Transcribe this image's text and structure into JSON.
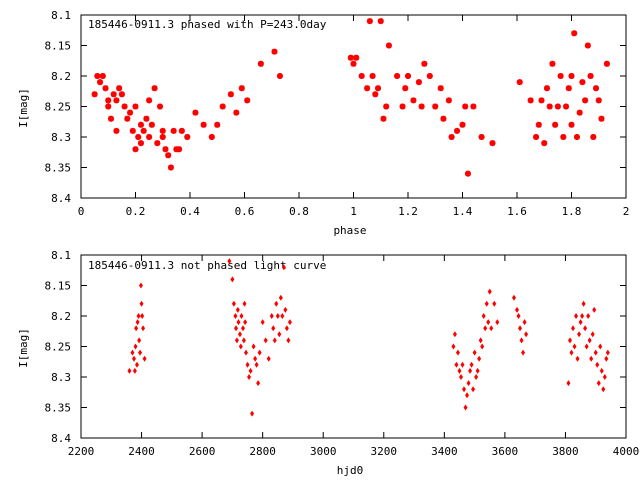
{
  "colors": {
    "point": "#ff0000",
    "axis": "#000000",
    "background": "#ffffff"
  },
  "chart_data": [
    {
      "type": "scatter",
      "title": "185446-0911.3 phased with P=243.0day",
      "xlabel": "phase",
      "ylabel": "I[mag]",
      "xlim": [
        0,
        2
      ],
      "ylim": [
        8.4,
        8.1
      ],
      "y_inverted": true,
      "marker": "star",
      "xticks": [
        "0",
        "0.2",
        "0.4",
        "0.6",
        "0.8",
        "1",
        "1.2",
        "1.4",
        "1.6",
        "1.8",
        "2"
      ],
      "yticks": [
        "8.1",
        "8.15",
        "8.2",
        "8.25",
        "8.3",
        "8.35",
        "8.4"
      ],
      "series": [
        {
          "x": [
            0.05,
            0.06,
            0.07,
            0.08,
            0.09,
            0.1,
            0.1,
            0.11,
            0.12,
            0.13,
            0.13,
            0.14,
            0.15,
            0.16,
            0.17,
            0.18,
            0.19,
            0.2,
            0.2,
            0.21,
            0.22,
            0.22,
            0.23,
            0.24,
            0.25,
            0.25,
            0.26,
            0.27,
            0.28,
            0.29,
            0.3,
            0.3,
            0.31,
            0.32,
            0.33,
            0.34,
            0.35,
            0.36,
            0.37,
            0.39,
            0.42,
            0.45,
            0.48,
            0.5,
            0.52,
            0.55,
            0.57,
            0.59,
            0.61,
            0.66,
            0.71,
            0.73,
            0.99,
            1.0,
            1.01,
            1.03,
            1.05,
            1.06,
            1.07,
            1.08,
            1.09,
            1.1,
            1.11,
            1.12,
            1.13,
            1.16,
            1.18,
            1.19,
            1.2,
            1.22,
            1.24,
            1.25,
            1.26,
            1.28,
            1.3,
            1.32,
            1.33,
            1.35,
            1.36,
            1.38,
            1.4,
            1.41,
            1.42,
            1.44,
            1.47,
            1.51,
            1.61,
            1.65,
            1.67,
            1.68,
            1.69,
            1.7,
            1.71,
            1.72,
            1.73,
            1.74,
            1.75,
            1.76,
            1.77,
            1.78,
            1.79,
            1.8,
            1.8,
            1.81,
            1.82,
            1.83,
            1.84,
            1.85,
            1.86,
            1.87,
            1.88,
            1.89,
            1.9,
            1.91,
            1.93
          ],
          "y": [
            8.23,
            8.2,
            8.21,
            8.2,
            8.22,
            8.24,
            8.25,
            8.27,
            8.23,
            8.24,
            8.29,
            8.22,
            8.23,
            8.25,
            8.27,
            8.26,
            8.29,
            8.25,
            8.32,
            8.3,
            8.28,
            8.31,
            8.29,
            8.27,
            8.24,
            8.3,
            8.28,
            8.22,
            8.31,
            8.25,
            8.3,
            8.29,
            8.32,
            8.33,
            8.35,
            8.29,
            8.32,
            8.32,
            8.29,
            8.3,
            8.26,
            8.28,
            8.3,
            8.28,
            8.25,
            8.23,
            8.26,
            8.22,
            8.24,
            8.18,
            8.16,
            8.2,
            8.17,
            8.18,
            8.17,
            8.2,
            8.22,
            8.11,
            8.2,
            8.23,
            8.22,
            8.11,
            8.27,
            8.25,
            8.15,
            8.2,
            8.25,
            8.22,
            8.2,
            8.24,
            8.21,
            8.25,
            8.18,
            8.2,
            8.25,
            8.22,
            8.27,
            8.24,
            8.3,
            8.29,
            8.28,
            8.25,
            8.36,
            8.25,
            8.3,
            8.31,
            8.21,
            8.24,
            8.3,
            8.28,
            8.24,
            8.31,
            8.22,
            8.25,
            8.18,
            8.28,
            8.25,
            8.2,
            8.3,
            8.25,
            8.22,
            8.28,
            8.2,
            8.13,
            8.3,
            8.26,
            8.21,
            8.24,
            8.15,
            8.2,
            8.3,
            8.22,
            8.24,
            8.27,
            8.18
          ]
        }
      ]
    },
    {
      "type": "scatter",
      "title": "185446-0911.3 not phased light curve",
      "xlabel": "hjd0",
      "ylabel": "I[mag]",
      "xlim": [
        2200,
        4000
      ],
      "ylim": [
        8.4,
        8.1
      ],
      "y_inverted": true,
      "marker": "diamond",
      "xticks": [
        "2200",
        "2400",
        "2600",
        "2800",
        "3000",
        "3200",
        "3400",
        "3600",
        "3800",
        "4000"
      ],
      "yticks": [
        "8.1",
        "8.15",
        "8.2",
        "8.25",
        "8.3",
        "8.35",
        "8.4"
      ],
      "series": [
        {
          "x": [
            2360,
            2370,
            2375,
            2378,
            2380,
            2382,
            2385,
            2387,
            2390,
            2392,
            2395,
            2398,
            2400,
            2402,
            2405,
            2410,
            2690,
            2700,
            2705,
            2710,
            2712,
            2715,
            2718,
            2720,
            2725,
            2728,
            2730,
            2735,
            2738,
            2740,
            2742,
            2745,
            2750,
            2755,
            2760,
            2765,
            2770,
            2775,
            2780,
            2785,
            2790,
            2800,
            2810,
            2820,
            2830,
            2835,
            2840,
            2845,
            2850,
            2855,
            2860,
            2865,
            2870,
            2875,
            2880,
            2885,
            2890,
            3430,
            3435,
            3440,
            3445,
            3450,
            3455,
            3460,
            3465,
            3470,
            3475,
            3480,
            3485,
            3490,
            3495,
            3500,
            3505,
            3510,
            3515,
            3520,
            3525,
            3530,
            3535,
            3540,
            3545,
            3550,
            3555,
            3565,
            3575,
            3630,
            3640,
            3645,
            3650,
            3655,
            3660,
            3665,
            3670,
            3810,
            3815,
            3820,
            3825,
            3830,
            3835,
            3840,
            3845,
            3850,
            3855,
            3860,
            3865,
            3870,
            3875,
            3880,
            3885,
            3890,
            3895,
            3900,
            3905,
            3910,
            3915,
            3920,
            3925,
            3930,
            3935,
            3940
          ],
          "y": [
            8.29,
            8.26,
            8.27,
            8.29,
            8.25,
            8.22,
            8.28,
            8.21,
            8.2,
            8.24,
            8.26,
            8.15,
            8.18,
            8.2,
            8.22,
            8.27,
            8.11,
            8.14,
            8.18,
            8.2,
            8.22,
            8.24,
            8.19,
            8.21,
            8.23,
            8.25,
            8.2,
            8.22,
            8.24,
            8.18,
            8.21,
            8.26,
            8.28,
            8.3,
            8.29,
            8.36,
            8.25,
            8.27,
            8.28,
            8.31,
            8.26,
            8.21,
            8.24,
            8.27,
            8.2,
            8.22,
            8.24,
            8.18,
            8.2,
            8.23,
            8.17,
            8.2,
            8.12,
            8.19,
            8.22,
            8.24,
            8.21,
            8.25,
            8.23,
            8.28,
            8.26,
            8.29,
            8.3,
            8.28,
            8.32,
            8.35,
            8.33,
            8.31,
            8.29,
            8.28,
            8.32,
            8.26,
            8.3,
            8.29,
            8.27,
            8.24,
            8.25,
            8.2,
            8.22,
            8.18,
            8.21,
            8.16,
            8.22,
            8.18,
            8.21,
            8.17,
            8.19,
            8.2,
            8.22,
            8.24,
            8.26,
            8.21,
            8.23,
            8.31,
            8.24,
            8.26,
            8.22,
            8.25,
            8.2,
            8.27,
            8.23,
            8.21,
            8.2,
            8.18,
            8.22,
            8.25,
            8.2,
            8.24,
            8.27,
            8.23,
            8.19,
            8.26,
            8.28,
            8.31,
            8.25,
            8.29,
            8.32,
            8.3,
            8.27,
            8.26
          ]
        }
      ]
    }
  ]
}
